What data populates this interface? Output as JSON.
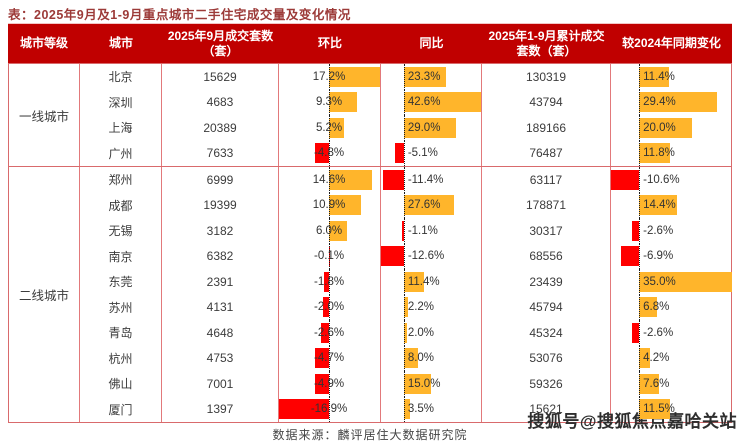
{
  "title": "表：2025年9月及1-9月重点城市二手住宅成交量及变化情况",
  "source_note": "数据来源：麟评居住大数据研究院",
  "watermark": "搜狐号@搜狐焦点嘉哈关站",
  "colors": {
    "header_bg": "#c00000",
    "header_text": "#ffffff",
    "title_text": "#9c3a38",
    "grid_border": "#e2797b",
    "bar_positive": "#ffb52b",
    "bar_negative": "#ff0000",
    "body_text": "#3c3c3c"
  },
  "chart_data": {
    "type": "table",
    "title": "2025年9月及1-9月重点城市二手住宅成交量及变化情况",
    "headers": [
      "城市等级",
      "城市",
      "2025年9月成交套数（套）",
      "环比",
      "同比",
      "2025年1-9月累计成交套数（套）",
      "较2024年同期变化"
    ],
    "bar_columns": [
      "mom",
      "yoy",
      "vs2024"
    ],
    "bar_style": {
      "positive_color": "#ffb52b",
      "negative_color": "#ff0000",
      "axis": "dotted zero line, excel-style data bars scaled to column min/max"
    },
    "sections": [
      {
        "tier": "一线城市",
        "rows": [
          {
            "city": "北京",
            "sep2025": "15629",
            "mom": 17.2,
            "yoy": 23.3,
            "cum2025": "130319",
            "vs2024": 11.4
          },
          {
            "city": "深圳",
            "sep2025": "4683",
            "mom": 9.3,
            "yoy": 42.6,
            "cum2025": "43794",
            "vs2024": 29.4
          },
          {
            "city": "上海",
            "sep2025": "20389",
            "mom": 5.2,
            "yoy": 29.0,
            "cum2025": "189166",
            "vs2024": 20.0
          },
          {
            "city": "广州",
            "sep2025": "7633",
            "mom": -4.8,
            "yoy": -5.1,
            "cum2025": "76487",
            "vs2024": 11.8
          }
        ]
      },
      {
        "tier": "二线城市",
        "rows": [
          {
            "city": "郑州",
            "sep2025": "6999",
            "mom": 14.6,
            "yoy": -11.4,
            "cum2025": "63117",
            "vs2024": -10.6
          },
          {
            "city": "成都",
            "sep2025": "19399",
            "mom": 10.9,
            "yoy": 27.6,
            "cum2025": "178871",
            "vs2024": 14.4
          },
          {
            "city": "无锡",
            "sep2025": "3182",
            "mom": 6.0,
            "yoy": -1.1,
            "cum2025": "30317",
            "vs2024": -2.6
          },
          {
            "city": "南京",
            "sep2025": "6382",
            "mom": -0.1,
            "yoy": -12.6,
            "cum2025": "68556",
            "vs2024": -6.9
          },
          {
            "city": "东莞",
            "sep2025": "2391",
            "mom": -1.8,
            "yoy": 11.4,
            "cum2025": "23439",
            "vs2024": 35.0
          },
          {
            "city": "苏州",
            "sep2025": "4131",
            "mom": -2.0,
            "yoy": 2.2,
            "cum2025": "45794",
            "vs2024": 6.8
          },
          {
            "city": "青岛",
            "sep2025": "4648",
            "mom": -2.6,
            "yoy": 2.0,
            "cum2025": "45324",
            "vs2024": -2.6
          },
          {
            "city": "杭州",
            "sep2025": "4753",
            "mom": -4.7,
            "yoy": 8.0,
            "cum2025": "53076",
            "vs2024": 4.2
          },
          {
            "city": "佛山",
            "sep2025": "7001",
            "mom": -4.9,
            "yoy": 15.0,
            "cum2025": "59326",
            "vs2024": 7.6
          },
          {
            "city": "厦门",
            "sep2025": "1397",
            "mom": -16.9,
            "yoy": 3.5,
            "cum2025": "15621",
            "vs2024": 11.5
          }
        ]
      }
    ]
  }
}
